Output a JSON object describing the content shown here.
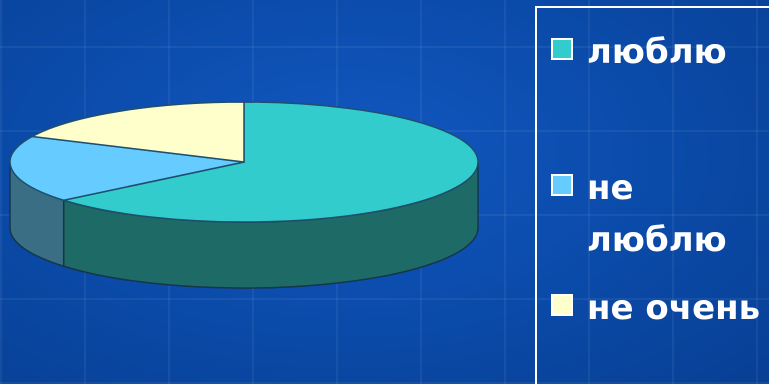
{
  "chart_data": {
    "type": "pie",
    "style": "3d",
    "categories": [
      "люблю",
      "не люблю",
      "не очень"
    ],
    "values": [
      64,
      18,
      18
    ],
    "colors": [
      "#33cccc",
      "#66ccff",
      "#ffffcc"
    ],
    "side_colors": [
      "#1e6a66",
      "#3a6e85",
      "#8a8a6a"
    ],
    "legend": {
      "position": "right",
      "items": [
        {
          "label": "люблю",
          "color": "#33cccc"
        },
        {
          "label": "не люблю",
          "color": "#66ccff"
        },
        {
          "label": "не очень",
          "color": "#ffffcc"
        }
      ]
    }
  }
}
